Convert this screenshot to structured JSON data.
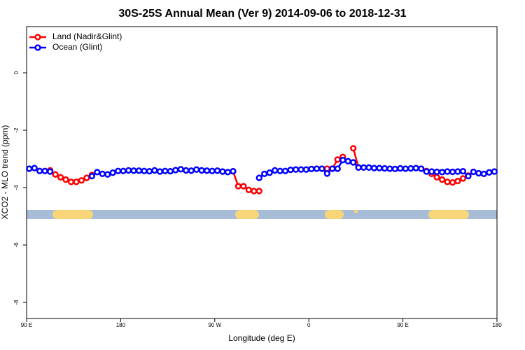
{
  "chart_data": {
    "type": "line",
    "title": "30S-25S Annual Mean (Ver 9)   2014-09-06 to 2018-12-31",
    "x_label": "Longitude (deg E)",
    "y_label": "XCO2 - MLO trend (ppm)",
    "xlim": [
      -270,
      180
    ],
    "ylim": [
      -8.56,
      1.61
    ],
    "xticks": [
      {
        "value": -270,
        "label": "90 E"
      },
      {
        "value": -180,
        "label": "180"
      },
      {
        "value": -90,
        "label": "90 W"
      },
      0,
      {
        "value": 90,
        "label": "90 E"
      },
      180
    ],
    "yticks": [
      0,
      -2,
      -4,
      -6,
      -8
    ],
    "legend": "topleft",
    "x": [
      -267.5,
      -262.5,
      -257.5,
      -252.5,
      -247.5,
      -242.5,
      -237.5,
      -232.5,
      -227.5,
      -222.5,
      -217.5,
      -212.5,
      -207.5,
      -202.5,
      -197.5,
      -192.5,
      -187.5,
      -182.5,
      -177.5,
      -172.5,
      -167.5,
      -162.5,
      -157.5,
      -152.5,
      -147.5,
      -142.5,
      -137.5,
      -132.5,
      -127.5,
      -122.5,
      -117.5,
      -112.5,
      -107.5,
      -102.5,
      -97.5,
      -92.5,
      -87.5,
      -82.5,
      -77.5,
      -72.5,
      -67.5,
      -62.5,
      -57.5,
      -52.5,
      -47.5,
      -42.5,
      -37.5,
      -32.5,
      -27.5,
      -22.5,
      -17.5,
      -12.5,
      -7.5,
      -2.5,
      2.5,
      7.5,
      12.5,
      17.5,
      22.5,
      27.5,
      32.5,
      37.5,
      42.5,
      47.5,
      52.5,
      57.5,
      62.5,
      67.5,
      72.5,
      77.5,
      82.5,
      87.5,
      92.5,
      97.5,
      102.5,
      107.5,
      112.5,
      117.5,
      122.5,
      127.5,
      132.5,
      137.5,
      142.5,
      147.5,
      152.5,
      157.5,
      162.5,
      167.5,
      172.5,
      177.5
    ],
    "series": [
      {
        "name": "Land (Nadir&Glint)",
        "color": "#ff0000",
        "values": [
          null,
          null,
          null,
          null,
          -3.4,
          -3.54,
          -3.64,
          -3.72,
          -3.8,
          -3.8,
          -3.75,
          -3.66,
          -3.56,
          null,
          null,
          null,
          null,
          null,
          null,
          null,
          null,
          null,
          null,
          null,
          null,
          null,
          null,
          null,
          null,
          null,
          null,
          null,
          null,
          null,
          null,
          null,
          null,
          null,
          null,
          -3.43,
          -3.95,
          -3.95,
          -4.08,
          -4.12,
          -4.12,
          null,
          null,
          null,
          null,
          null,
          null,
          null,
          null,
          null,
          null,
          null,
          null,
          -3.34,
          -3.34,
          -3.02,
          -2.93,
          null,
          -2.63,
          -3.3,
          null,
          null,
          null,
          null,
          null,
          null,
          null,
          null,
          null,
          null,
          null,
          null,
          -3.42,
          -3.52,
          -3.64,
          -3.72,
          -3.8,
          -3.82,
          -3.77,
          -3.68,
          -3.58,
          null,
          null,
          null,
          null,
          null
        ]
      },
      {
        "name": "Ocean (Glint)",
        "color": "#0000ff",
        "values": [
          -3.34,
          -3.32,
          -3.42,
          -3.42,
          -3.44,
          null,
          null,
          null,
          null,
          null,
          null,
          null,
          -3.6,
          -3.46,
          -3.52,
          -3.54,
          -3.48,
          -3.42,
          -3.42,
          -3.4,
          -3.41,
          -3.41,
          -3.42,
          -3.43,
          -3.4,
          -3.44,
          -3.42,
          -3.43,
          -3.39,
          -3.36,
          -3.4,
          -3.41,
          -3.37,
          -3.4,
          -3.41,
          -3.42,
          -3.41,
          -3.44,
          -3.46,
          -3.43,
          null,
          null,
          null,
          null,
          -3.66,
          -3.52,
          -3.48,
          -3.4,
          -3.42,
          -3.42,
          -3.38,
          -3.37,
          -3.37,
          -3.37,
          -3.35,
          -3.34,
          -3.34,
          -3.51,
          -3.34,
          -3.34,
          -3.04,
          -3.08,
          -3.12,
          -3.3,
          -3.3,
          -3.3,
          -3.32,
          -3.32,
          -3.33,
          -3.34,
          -3.35,
          -3.33,
          -3.34,
          -3.33,
          -3.32,
          -3.34,
          -3.44,
          -3.44,
          -3.45,
          -3.46,
          -3.44,
          -3.45,
          -3.44,
          -3.43,
          -3.6,
          -3.45,
          -3.5,
          -3.52,
          -3.47,
          -3.44
        ]
      }
    ]
  }
}
